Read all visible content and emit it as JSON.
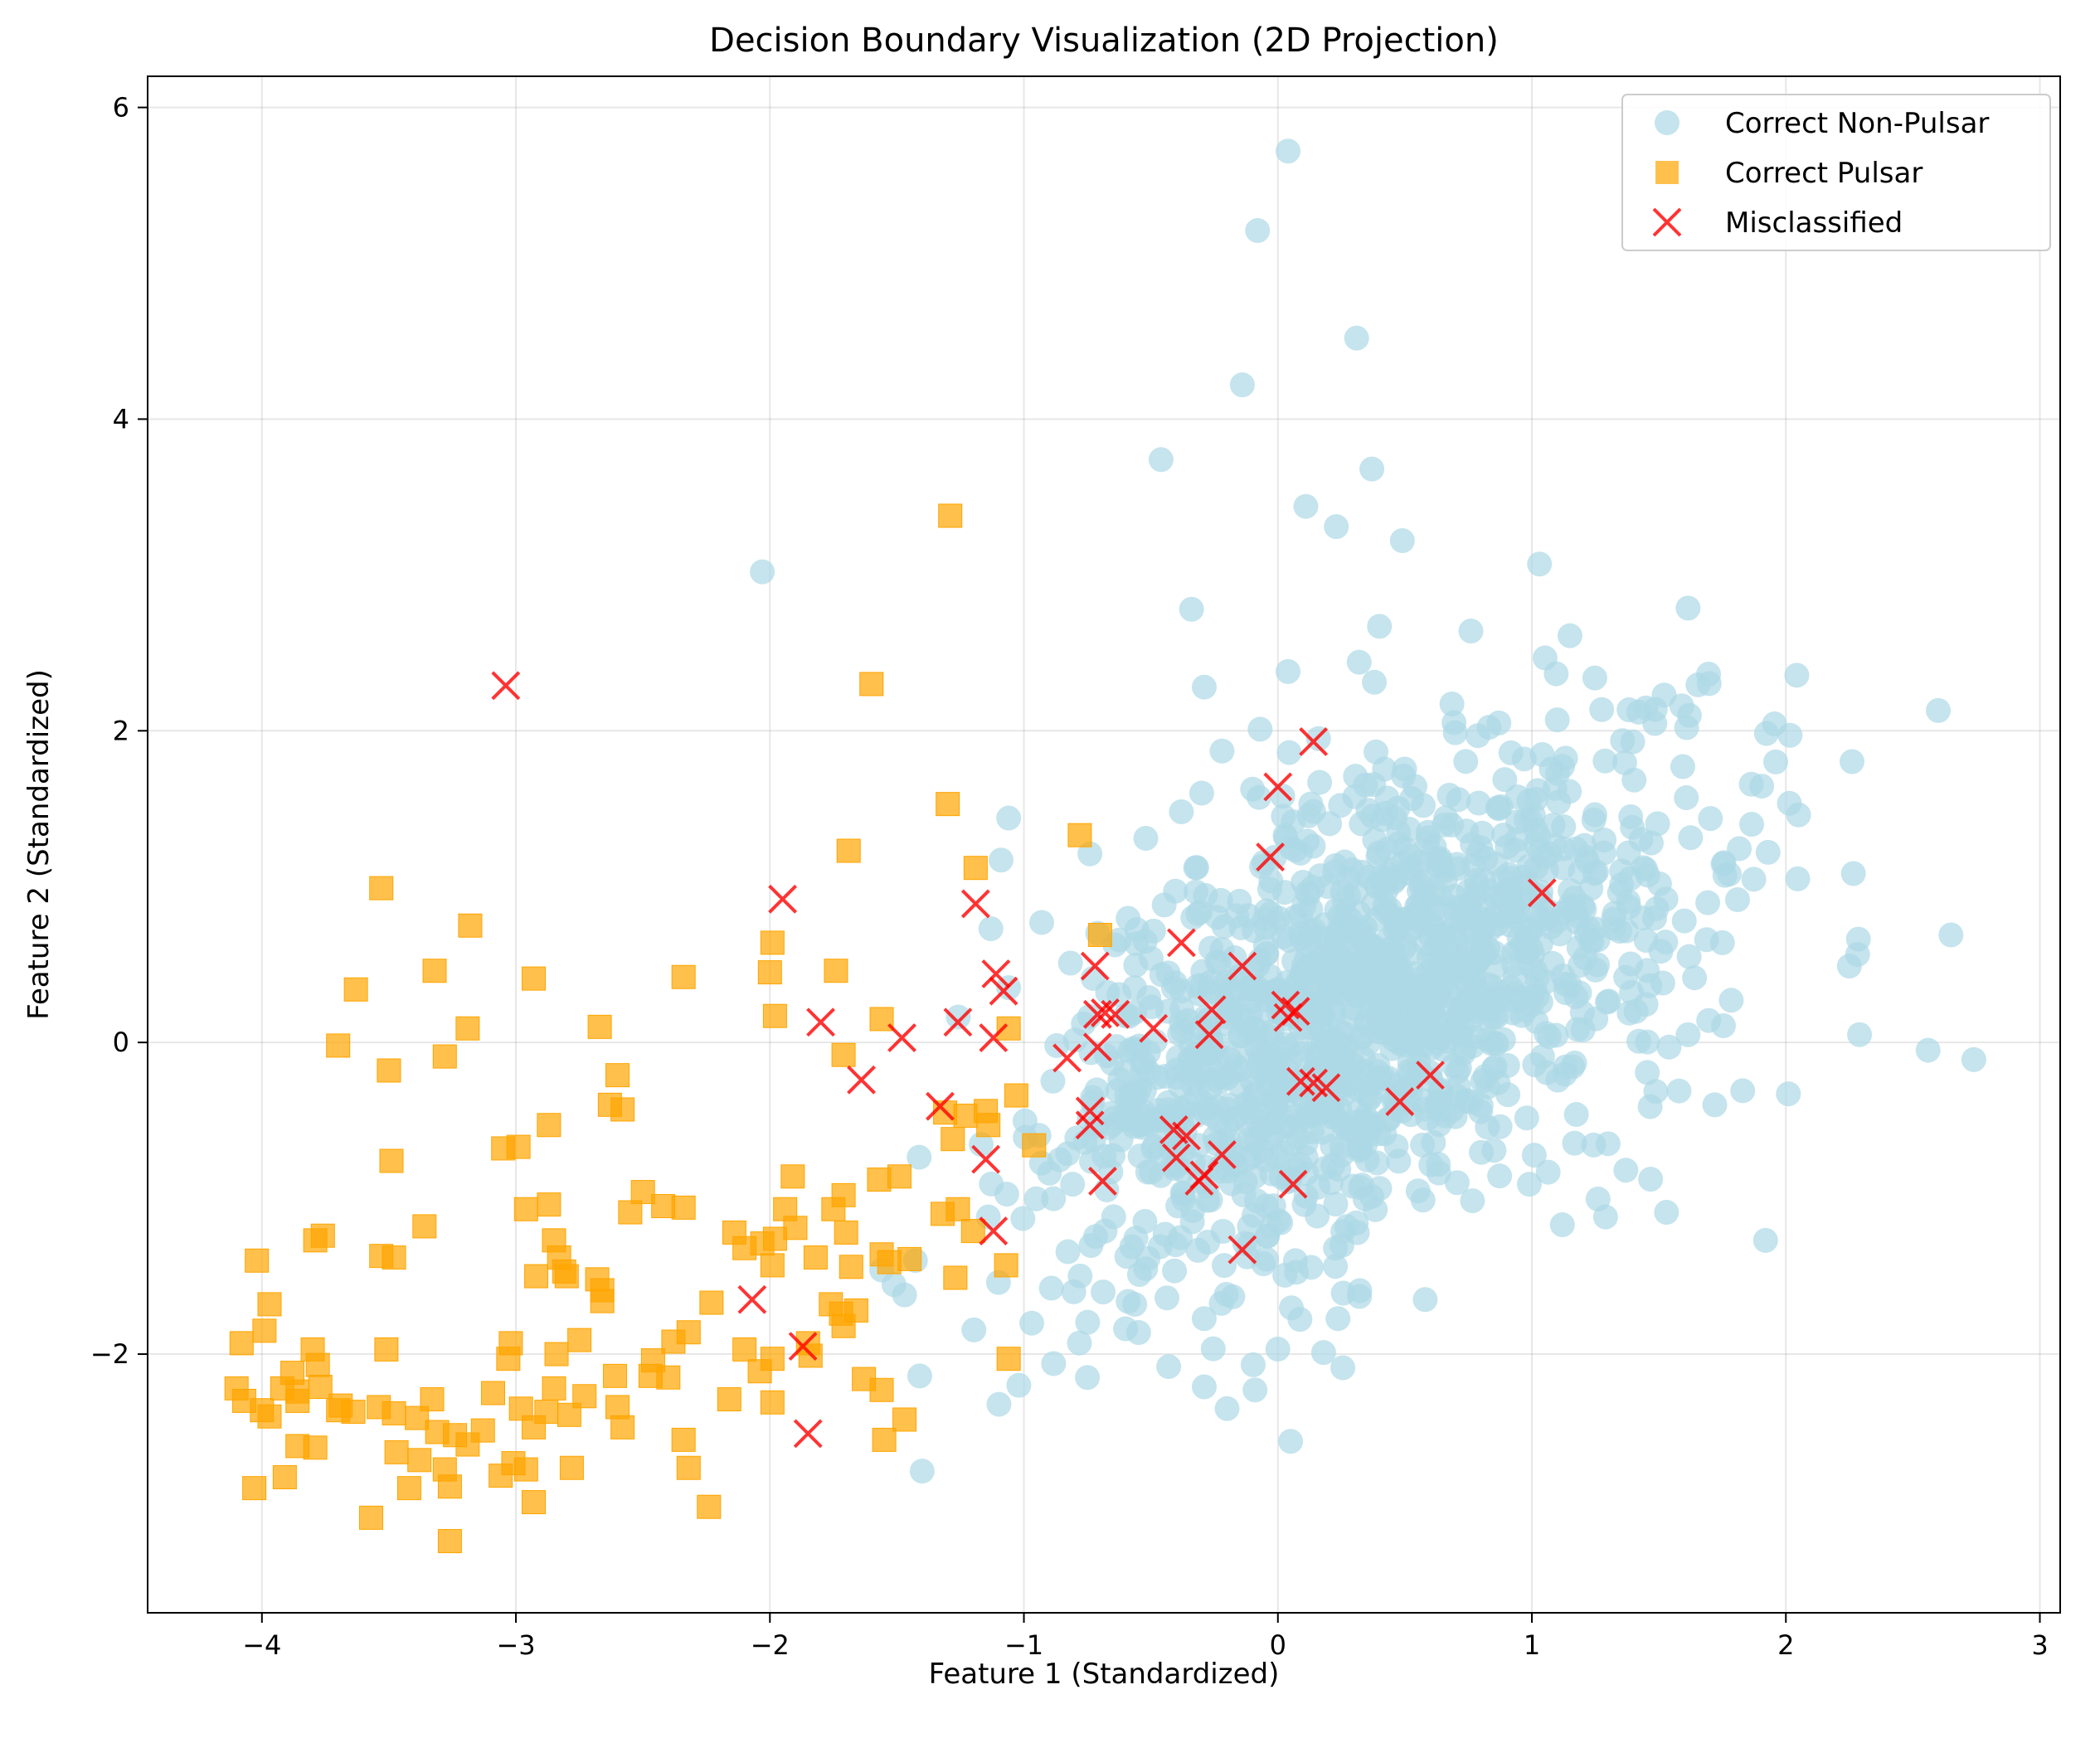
{
  "chart_data": {
    "type": "scatter",
    "title": "Decision Boundary Visualization (2D Projection)",
    "xlabel": "Feature 1 (Standardized)",
    "ylabel": "Feature 2 (Standardized)",
    "xlim": [
      -4.45,
      3.08
    ],
    "ylim": [
      -3.66,
      6.2
    ],
    "xticks": [
      -4,
      -3,
      -2,
      -1,
      0,
      1,
      2,
      3
    ],
    "yticks": [
      -2,
      0,
      2,
      4,
      6
    ],
    "grid": true,
    "legend_position": "top-right",
    "series": [
      {
        "name": "Correct Non-Pulsar",
        "marker": "circle",
        "color": "#add8e6",
        "cluster": {
          "center": [
            0.35,
            0.2
          ],
          "spread": [
            0.62,
            0.82
          ],
          "correlation": 0.55,
          "count": 1400,
          "seed": 7
        },
        "points": [
          [
            0.04,
            5.72
          ],
          [
            -0.08,
            5.21
          ],
          [
            0.31,
            4.52
          ],
          [
            -0.14,
            4.22
          ],
          [
            -0.46,
            3.74
          ],
          [
            0.37,
            3.68
          ],
          [
            0.11,
            3.44
          ],
          [
            0.23,
            3.31
          ],
          [
            0.49,
            3.22
          ],
          [
            1.03,
            3.07
          ],
          [
            -2.03,
            3.02
          ],
          [
            -0.34,
            2.78
          ],
          [
            0.4,
            2.67
          ],
          [
            0.76,
            2.64
          ],
          [
            1.15,
            2.61
          ],
          [
            0.32,
            2.44
          ],
          [
            0.04,
            2.38
          ],
          [
            -0.29,
            2.28
          ],
          [
            1.59,
            2.16
          ],
          [
            2.6,
            2.13
          ],
          [
            1.96,
            1.8
          ],
          [
            2.05,
            1.46
          ],
          [
            1.1,
            2.07
          ],
          [
            0.87,
            2.05
          ],
          [
            -0.07,
            2.01
          ],
          [
            1.47,
            1.28
          ],
          [
            1.93,
            1.22
          ],
          [
            2.25,
            0.49
          ],
          [
            2.65,
            0.69
          ],
          [
            2.29,
            0.05
          ],
          [
            2.56,
            -0.05
          ],
          [
            2.74,
            -0.11
          ],
          [
            2.01,
            -0.33
          ],
          [
            1.92,
            -1.27
          ],
          [
            1.53,
            -1.09
          ],
          [
            1.83,
            -0.31
          ],
          [
            1.12,
            -1.17
          ],
          [
            0.58,
            -1.65
          ],
          [
            0.18,
            -1.99
          ],
          [
            0.05,
            -2.56
          ],
          [
            -0.2,
            -2.35
          ],
          [
            -0.09,
            -2.23
          ],
          [
            -0.43,
            -2.08
          ],
          [
            -0.75,
            -2.15
          ],
          [
            -1.02,
            -2.2
          ],
          [
            -1.41,
            -2.14
          ],
          [
            -1.47,
            -1.62
          ],
          [
            -1.1,
            -1.54
          ],
          [
            -0.29,
            -2.21
          ],
          [
            -1.14,
            -1.12
          ],
          [
            -1.56,
            -1.46
          ],
          [
            -1.06,
            1.44
          ],
          [
            -1.09,
            1.17
          ],
          [
            -1.13,
            0.73
          ],
          [
            -0.93,
            0.77
          ],
          [
            -0.52,
            1.31
          ],
          [
            -0.74,
            1.21
          ],
          [
            -0.38,
            1.48
          ],
          [
            -0.3,
            1.6
          ],
          [
            -0.22,
            1.87
          ],
          [
            0.16,
            1.95
          ],
          [
            1.6,
            0.78
          ],
          [
            1.75,
            0.64
          ],
          [
            1.41,
            0.2
          ],
          [
            1.54,
            -0.03
          ],
          [
            1.72,
            -0.4
          ],
          [
            1.3,
            -0.65
          ],
          [
            1.37,
            -0.82
          ],
          [
            1.29,
            -1.12
          ],
          [
            0.99,
            -0.91
          ]
        ]
      },
      {
        "name": "Correct Pulsar",
        "marker": "square",
        "color": "#ffa500",
        "points": [
          [
            -1.29,
            3.38
          ],
          [
            -1.6,
            2.3
          ],
          [
            -1.3,
            1.53
          ],
          [
            -0.78,
            1.33
          ],
          [
            -1.19,
            1.12
          ],
          [
            -1.69,
            1.23
          ],
          [
            -0.7,
            0.69
          ],
          [
            -1.74,
            0.46
          ],
          [
            -1.99,
            0.64
          ],
          [
            -2.0,
            0.45
          ],
          [
            -1.98,
            0.17
          ],
          [
            -2.34,
            0.42
          ],
          [
            -1.56,
            0.15
          ],
          [
            -1.06,
            0.09
          ],
          [
            -3.53,
            0.99
          ],
          [
            -3.18,
            0.75
          ],
          [
            -3.32,
            0.46
          ],
          [
            -2.93,
            0.41
          ],
          [
            -3.63,
            0.34
          ],
          [
            -3.19,
            0.09
          ],
          [
            -3.7,
            -0.02
          ],
          [
            -3.28,
            -0.09
          ],
          [
            -3.5,
            -0.18
          ],
          [
            -2.67,
            0.1
          ],
          [
            -2.6,
            -0.21
          ],
          [
            -2.58,
            -0.43
          ],
          [
            -2.63,
            -0.4
          ],
          [
            -1.71,
            -0.08
          ],
          [
            -3.49,
            -0.76
          ],
          [
            -2.87,
            -0.53
          ],
          [
            -2.99,
            -0.67
          ],
          [
            -3.05,
            -0.68
          ],
          [
            -1.03,
            -0.34
          ],
          [
            -1.31,
            -0.45
          ],
          [
            -1.23,
            -0.47
          ],
          [
            -1.15,
            -0.44
          ],
          [
            -1.14,
            -0.53
          ],
          [
            -1.28,
            -0.62
          ],
          [
            -0.96,
            -0.66
          ],
          [
            -1.49,
            -0.86
          ],
          [
            -1.57,
            -0.88
          ],
          [
            -1.91,
            -0.86
          ],
          [
            -1.71,
            -0.98
          ],
          [
            -1.75,
            -1.07
          ],
          [
            -1.94,
            -1.07
          ],
          [
            -2.96,
            -1.07
          ],
          [
            -2.87,
            -1.04
          ],
          [
            -3.36,
            -1.18
          ],
          [
            -3.76,
            -1.24
          ],
          [
            -3.79,
            -1.27
          ],
          [
            -4.02,
            -1.4
          ],
          [
            -3.48,
            -1.38
          ],
          [
            -3.53,
            -1.37
          ],
          [
            -2.85,
            -1.27
          ],
          [
            -2.83,
            -1.38
          ],
          [
            -2.55,
            -1.09
          ],
          [
            -2.5,
            -0.96
          ],
          [
            -2.42,
            -1.05
          ],
          [
            -2.34,
            -1.06
          ],
          [
            -2.14,
            -1.22
          ],
          [
            -1.98,
            -1.26
          ],
          [
            -1.9,
            -1.19
          ],
          [
            -1.7,
            -1.22
          ],
          [
            -1.68,
            -1.44
          ],
          [
            -1.56,
            -1.36
          ],
          [
            -1.45,
            -1.39
          ],
          [
            -1.53,
            -1.41
          ],
          [
            -1.32,
            -1.1
          ],
          [
            -1.26,
            -1.07
          ],
          [
            -1.2,
            -1.21
          ],
          [
            -1.07,
            -1.43
          ],
          [
            -1.27,
            -1.51
          ],
          [
            -1.99,
            -1.43
          ],
          [
            -1.82,
            -1.38
          ],
          [
            -2.03,
            -1.29
          ],
          [
            -2.1,
            -1.32
          ],
          [
            -2.68,
            -1.52
          ],
          [
            -2.66,
            -1.59
          ],
          [
            -2.66,
            -1.66
          ],
          [
            -2.81,
            -1.47
          ],
          [
            -2.8,
            -1.5
          ],
          [
            -2.92,
            -1.5
          ],
          [
            -3.99,
            -1.85
          ],
          [
            -3.97,
            -1.68
          ],
          [
            -4.08,
            -1.93
          ],
          [
            -3.88,
            -2.12
          ],
          [
            -3.8,
            -1.97
          ],
          [
            -3.78,
            -2.07
          ],
          [
            -3.51,
            -1.97
          ],
          [
            -3.02,
            -1.93
          ],
          [
            -3.03,
            -2.03
          ],
          [
            -2.84,
            -2.0
          ],
          [
            -2.75,
            -1.91
          ],
          [
            -2.61,
            -2.14
          ],
          [
            -2.46,
            -2.04
          ],
          [
            -2.4,
            -2.15
          ],
          [
            -2.38,
            -1.92
          ],
          [
            -2.23,
            -1.67
          ],
          [
            -2.32,
            -1.86
          ],
          [
            -2.1,
            -1.97
          ],
          [
            -2.04,
            -2.11
          ],
          [
            -1.99,
            -2.03
          ],
          [
            -1.85,
            -1.93
          ],
          [
            -1.76,
            -1.68
          ],
          [
            -1.71,
            -1.82
          ],
          [
            -1.72,
            -1.74
          ],
          [
            -1.66,
            -1.72
          ],
          [
            -1.84,
            -2.01
          ],
          [
            -1.63,
            -2.16
          ],
          [
            -1.56,
            -2.23
          ],
          [
            -1.06,
            -2.03
          ],
          [
            -1.47,
            -2.42
          ],
          [
            -1.55,
            -2.55
          ],
          [
            -2.16,
            -2.29
          ],
          [
            -1.99,
            -2.31
          ],
          [
            -2.34,
            -2.55
          ],
          [
            -2.32,
            -2.73
          ],
          [
            -2.24,
            -2.98
          ],
          [
            -4.1,
            -2.22
          ],
          [
            -4.07,
            -2.3
          ],
          [
            -4.0,
            -2.36
          ],
          [
            -3.97,
            -2.4
          ],
          [
            -3.92,
            -2.22
          ],
          [
            -3.86,
            -2.3
          ],
          [
            -3.77,
            -2.21
          ],
          [
            -3.7,
            -2.36
          ],
          [
            -3.64,
            -2.37
          ],
          [
            -3.54,
            -2.34
          ],
          [
            -3.48,
            -2.38
          ],
          [
            -3.39,
            -2.41
          ],
          [
            -3.33,
            -2.29
          ],
          [
            -3.31,
            -2.5
          ],
          [
            -3.24,
            -2.52
          ],
          [
            -3.19,
            -2.58
          ],
          [
            -3.13,
            -2.49
          ],
          [
            -3.28,
            -2.74
          ],
          [
            -3.26,
            -2.85
          ],
          [
            -3.38,
            -2.68
          ],
          [
            -3.47,
            -2.63
          ],
          [
            -3.42,
            -2.86
          ],
          [
            -3.57,
            -3.05
          ],
          [
            -3.26,
            -3.2
          ],
          [
            -3.86,
            -2.59
          ],
          [
            -3.79,
            -2.6
          ],
          [
            -3.91,
            -2.79
          ],
          [
            -4.03,
            -2.86
          ],
          [
            -3.01,
            -2.7
          ],
          [
            -2.96,
            -2.74
          ],
          [
            -2.93,
            -2.95
          ],
          [
            -3.06,
            -2.78
          ],
          [
            -2.78,
            -2.73
          ],
          [
            -2.93,
            -2.47
          ],
          [
            -2.88,
            -2.37
          ],
          [
            -2.79,
            -2.39
          ],
          [
            -2.73,
            -2.27
          ],
          [
            -2.98,
            -2.35
          ],
          [
            -2.85,
            -2.22
          ],
          [
            -2.6,
            -2.34
          ],
          [
            -2.58,
            -2.47
          ],
          [
            -2.47,
            -2.14
          ],
          [
            -3.69,
            -2.33
          ],
          [
            -3.86,
            -2.24
          ],
          [
            -3.09,
            -2.25
          ]
        ]
      },
      {
        "name": "Misclassified",
        "marker": "x",
        "color": "#ff0000",
        "points": [
          [
            -3.04,
            2.29
          ],
          [
            0.14,
            1.93
          ],
          [
            0.0,
            1.64
          ],
          [
            -0.03,
            1.19
          ],
          [
            1.04,
            0.96
          ],
          [
            -1.95,
            0.92
          ],
          [
            -1.19,
            0.89
          ],
          [
            -0.72,
            0.49
          ],
          [
            -0.38,
            0.64
          ],
          [
            -0.14,
            0.49
          ],
          [
            -1.11,
            0.44
          ],
          [
            -1.08,
            0.33
          ],
          [
            -0.68,
            0.19
          ],
          [
            -0.71,
            0.18
          ],
          [
            -0.64,
            0.18
          ],
          [
            -1.8,
            0.13
          ],
          [
            -1.26,
            0.13
          ],
          [
            -0.49,
            0.09
          ],
          [
            0.03,
            0.24
          ],
          [
            0.07,
            0.2
          ],
          [
            0.04,
            0.16
          ],
          [
            -0.26,
            0.21
          ],
          [
            -0.27,
            0.05
          ],
          [
            -1.12,
            0.03
          ],
          [
            -1.48,
            0.03
          ],
          [
            -0.71,
            -0.03
          ],
          [
            -0.83,
            -0.1
          ],
          [
            -1.64,
            -0.24
          ],
          [
            0.09,
            -0.25
          ],
          [
            0.14,
            -0.26
          ],
          [
            0.19,
            -0.29
          ],
          [
            0.6,
            -0.21
          ],
          [
            0.48,
            -0.38
          ],
          [
            -0.74,
            -0.44
          ],
          [
            -0.74,
            -0.53
          ],
          [
            -1.33,
            -0.41
          ],
          [
            -0.41,
            -0.56
          ],
          [
            -0.36,
            -0.6
          ],
          [
            -0.4,
            -0.74
          ],
          [
            -0.22,
            -0.72
          ],
          [
            -1.15,
            -0.75
          ],
          [
            -0.69,
            -0.89
          ],
          [
            -0.29,
            -0.85
          ],
          [
            -0.31,
            -0.89
          ],
          [
            0.06,
            -0.91
          ],
          [
            -1.12,
            -1.21
          ],
          [
            -0.14,
            -1.33
          ],
          [
            -2.07,
            -1.65
          ],
          [
            -1.87,
            -1.95
          ],
          [
            -1.85,
            -2.51
          ]
        ]
      }
    ]
  }
}
